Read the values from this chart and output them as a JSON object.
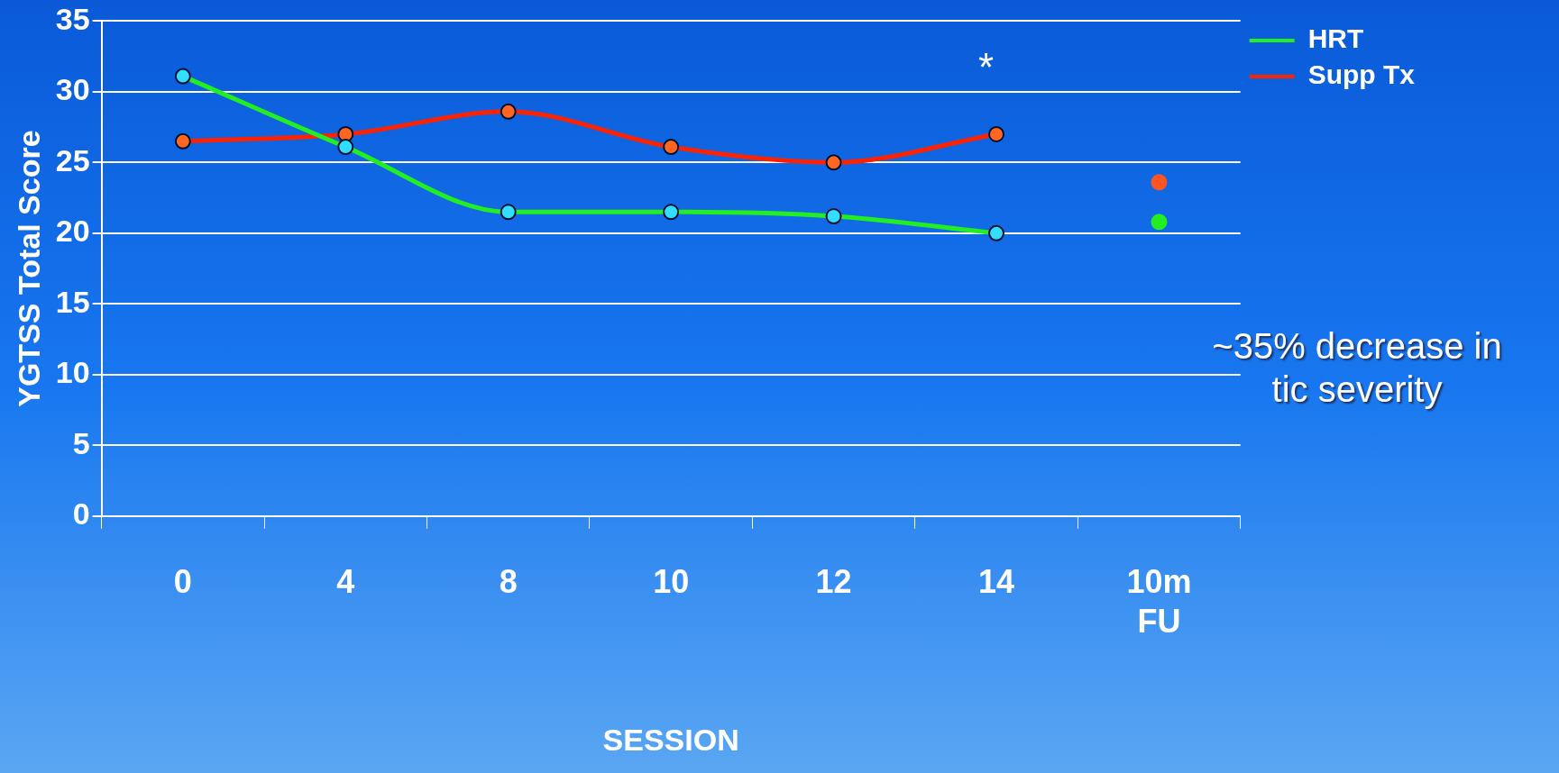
{
  "chart_data": {
    "type": "line",
    "xlabel": "SESSION",
    "ylabel": "YGTSS Total Score",
    "categories": [
      "0",
      "4",
      "8",
      "10",
      "12",
      "14",
      "10m FU"
    ],
    "series": [
      {
        "name": "HRT",
        "color": "#22ee22",
        "values": [
          31.1,
          26.1,
          21.5,
          21.5,
          21.2,
          20.0,
          null
        ]
      },
      {
        "name": "Supp Tx",
        "color": "#ff2200",
        "values": [
          26.5,
          27.0,
          28.6,
          26.1,
          25.0,
          27.0,
          null
        ]
      },
      {
        "type": "scatter",
        "color": "#22ee22",
        "values": [
          null,
          null,
          null,
          null,
          null,
          null,
          20.8
        ]
      },
      {
        "type": "scatter",
        "color": "#ff5522",
        "values": [
          null,
          null,
          null,
          null,
          null,
          null,
          23.6
        ]
      }
    ],
    "ylim": [
      0,
      35
    ],
    "yticks": [
      0,
      5,
      10,
      15,
      20,
      25,
      30,
      35
    ],
    "grid": "y",
    "legend": "right",
    "marker": "circle",
    "annotations": [
      "*",
      "~35% decrease in tic severity"
    ]
  }
}
